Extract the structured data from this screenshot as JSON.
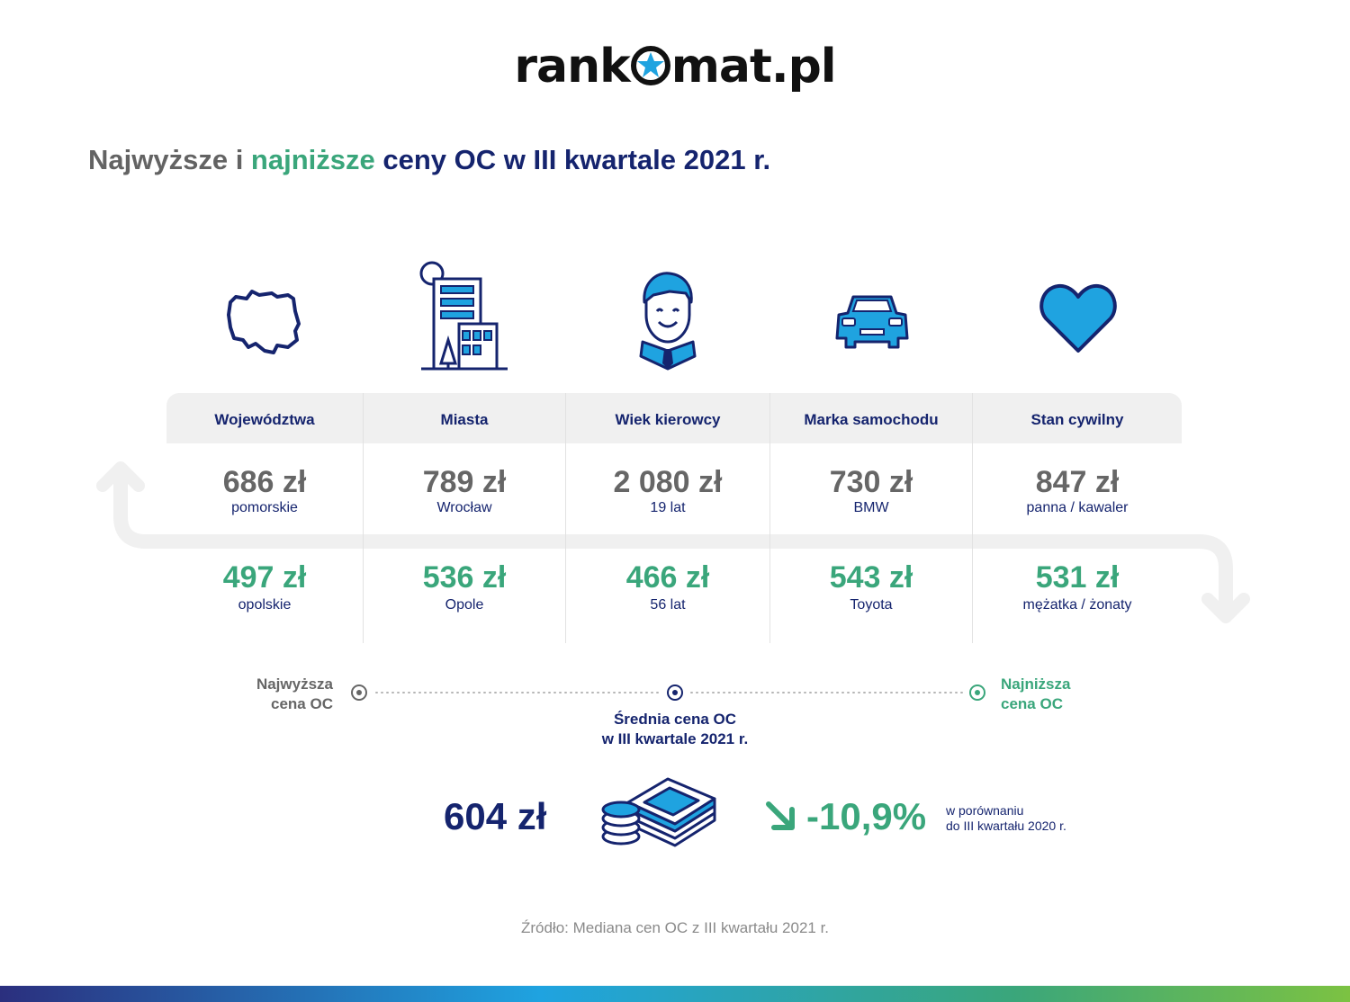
{
  "brand": {
    "name_before": "rank",
    "name_after": "mat.pl",
    "logo_star_color": "#1fa3e0"
  },
  "headline": {
    "part1": "Najwyższe",
    "part2": " i ",
    "part3": "najniższe",
    "part4": " ceny OC w III kwartale 2021 r.",
    "colors": {
      "grey": "#636363",
      "green": "#3aa67b",
      "navy": "#15246e"
    }
  },
  "icons": [
    "poland-map-icon",
    "city-buildings-icon",
    "driver-face-icon",
    "car-icon",
    "heart-icon"
  ],
  "table": {
    "columns": [
      {
        "header": "Województwa",
        "highest_value": "686 zł",
        "highest_label": "pomorskie",
        "lowest_value": "497 zł",
        "lowest_label": "opolskie"
      },
      {
        "header": "Miasta",
        "highest_value": "789 zł",
        "highest_label": "Wrocław",
        "lowest_value": "536 zł",
        "lowest_label": "Opole"
      },
      {
        "header": "Wiek kierowcy",
        "highest_value": "2 080 zł",
        "highest_label": "19 lat",
        "lowest_value": "466 zł",
        "lowest_label": "56 lat"
      },
      {
        "header": "Marka samochodu",
        "highest_value": "730 zł",
        "highest_label": "BMW",
        "lowest_value": "543 zł",
        "lowest_label": "Toyota"
      },
      {
        "header": "Stan cywilny",
        "highest_value": "847 zł",
        "highest_label": "panna / kawaler",
        "lowest_value": "531 zł",
        "lowest_label": "mężatka / żonaty"
      }
    ]
  },
  "legend": {
    "highest_line1": "Najwyższa",
    "highest_line2": "cena OC",
    "average_line1": "Średnia cena OC",
    "average_line2": "w III kwartale 2021 r.",
    "lowest_line1": "Najniższa",
    "lowest_line2": "cena OC"
  },
  "summary": {
    "average_price": "604 zł",
    "change": "-10,9%",
    "change_direction": "down",
    "compare_line1": "w porównaniu",
    "compare_line2": "do III kwartału 2020 r."
  },
  "source": "Źródło: Mediana cen OC z III kwartału 2021 r.",
  "colors": {
    "navy": "#15246e",
    "green": "#3aa67b",
    "grey": "#666666",
    "blue": "#1fa3e0"
  }
}
